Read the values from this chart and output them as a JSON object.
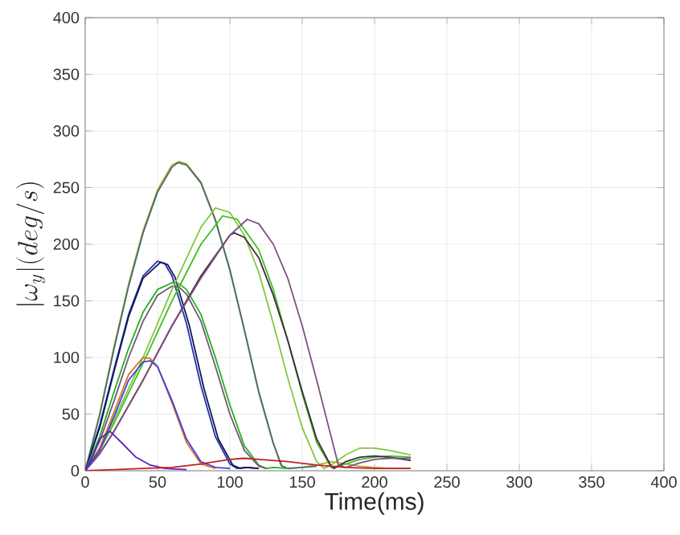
{
  "chart_data": {
    "type": "line",
    "xlabel": "Time(ms)",
    "ylabel": "|\\omega_y|(deg/s)",
    "xlim": [
      0,
      400
    ],
    "ylim": [
      0,
      400
    ],
    "xticks": [
      0,
      50,
      100,
      150,
      200,
      250,
      300,
      350,
      400
    ],
    "yticks": [
      0,
      50,
      100,
      150,
      200,
      250,
      300,
      350,
      400
    ],
    "grid": true,
    "series": [
      {
        "color": "#c0a838",
        "x": [
          0,
          10,
          20,
          30,
          40,
          50,
          60,
          65,
          70,
          80,
          90,
          100,
          110,
          120,
          130,
          135,
          140,
          150,
          160,
          170,
          180,
          190,
          200,
          210,
          225
        ],
        "values": [
          0,
          50,
          110,
          165,
          212,
          248,
          270,
          273,
          271,
          255,
          222,
          178,
          125,
          70,
          25,
          5,
          2,
          3,
          5,
          8,
          6,
          4,
          3,
          2,
          2
        ]
      },
      {
        "color": "#3f6f6f",
        "x": [
          0,
          10,
          20,
          30,
          40,
          50,
          60,
          64,
          70,
          80,
          90,
          100,
          110,
          120,
          130,
          136,
          140,
          150,
          160
        ],
        "values": [
          0,
          49,
          108,
          163,
          210,
          246,
          268,
          272,
          270,
          254,
          221,
          177,
          124,
          69,
          24,
          4,
          2,
          3,
          4
        ]
      },
      {
        "color": "#2030b0",
        "x": [
          0,
          10,
          20,
          30,
          40,
          50,
          55,
          60,
          70,
          80,
          90,
          100,
          105,
          110,
          120
        ],
        "values": [
          0,
          40,
          90,
          138,
          172,
          185,
          183,
          172,
          130,
          75,
          30,
          6,
          2,
          3,
          2
        ]
      },
      {
        "color": "#101850",
        "x": [
          0,
          10,
          20,
          30,
          40,
          52,
          57,
          62,
          72,
          82,
          92,
          102,
          107,
          112,
          120
        ],
        "values": [
          0,
          38,
          88,
          136,
          170,
          184,
          182,
          171,
          128,
          73,
          28,
          5,
          2,
          3,
          2
        ]
      },
      {
        "color": "#20b020",
        "x": [
          0,
          10,
          20,
          30,
          40,
          50,
          60,
          65,
          70,
          80,
          90,
          100,
          110,
          120,
          125,
          130,
          140
        ],
        "values": [
          0,
          30,
          70,
          108,
          140,
          160,
          166,
          165,
          160,
          138,
          100,
          58,
          22,
          5,
          2,
          3,
          2
        ]
      },
      {
        "color": "#705878",
        "x": [
          0,
          10,
          20,
          30,
          40,
          50,
          60,
          65,
          70,
          80,
          90,
          100,
          110,
          120,
          125
        ],
        "values": [
          0,
          26,
          62,
          100,
          132,
          155,
          163,
          162,
          156,
          132,
          92,
          50,
          18,
          4,
          2
        ]
      },
      {
        "color": "#80c840",
        "x": [
          0,
          10,
          20,
          40,
          60,
          80,
          90,
          100,
          110,
          120,
          130,
          140,
          150,
          160,
          165,
          170,
          180,
          190,
          200,
          210,
          225
        ],
        "values": [
          0,
          20,
          45,
          100,
          160,
          215,
          232,
          228,
          208,
          175,
          130,
          82,
          38,
          8,
          2,
          5,
          14,
          20,
          20,
          18,
          14
        ]
      },
      {
        "color": "#40c020",
        "x": [
          0,
          10,
          20,
          40,
          60,
          80,
          95,
          105,
          120,
          130,
          140,
          150,
          160,
          170,
          180,
          190,
          200,
          210,
          225
        ],
        "values": [
          0,
          18,
          42,
          95,
          150,
          200,
          225,
          222,
          195,
          160,
          115,
          68,
          25,
          3,
          6,
          10,
          12,
          13,
          12
        ]
      },
      {
        "color": "#402840",
        "x": [
          0,
          10,
          20,
          40,
          60,
          80,
          100,
          103,
          110,
          120,
          130,
          140,
          150,
          160,
          170,
          172,
          180,
          190,
          200,
          210,
          225
        ],
        "values": [
          0,
          15,
          35,
          80,
          128,
          172,
          208,
          210,
          206,
          188,
          155,
          115,
          70,
          28,
          4,
          2,
          8,
          12,
          13,
          12,
          9
        ]
      },
      {
        "color": "#805080",
        "x": [
          0,
          10,
          20,
          40,
          60,
          80,
          100,
          112,
          120,
          130,
          140,
          150,
          160,
          170,
          175,
          180,
          190,
          200,
          210,
          225
        ],
        "values": [
          0,
          15,
          35,
          80,
          128,
          170,
          208,
          222,
          218,
          200,
          170,
          128,
          80,
          30,
          5,
          3,
          7,
          10,
          11,
          11
        ]
      },
      {
        "color": "#e07020",
        "x": [
          0,
          10,
          20,
          30,
          40,
          45,
          50,
          60,
          70,
          80,
          90
        ],
        "values": [
          0,
          20,
          52,
          85,
          100,
          99,
          92,
          60,
          25,
          6,
          2
        ]
      },
      {
        "color": "#4040e0",
        "x": [
          0,
          10,
          20,
          30,
          40,
          45,
          50,
          60,
          70,
          80,
          90,
          100
        ],
        "values": [
          0,
          18,
          48,
          80,
          96,
          97,
          92,
          62,
          28,
          8,
          3,
          2
        ]
      },
      {
        "color": "#6020c0",
        "x": [
          0,
          5,
          10,
          17,
          25,
          35,
          45,
          55,
          70
        ],
        "values": [
          0,
          12,
          28,
          35,
          25,
          12,
          5,
          2,
          1
        ]
      },
      {
        "color": "#c02020",
        "x": [
          0,
          20,
          40,
          60,
          80,
          100,
          110,
          120,
          140,
          160,
          180,
          200,
          225
        ],
        "values": [
          0,
          1,
          2,
          3,
          6,
          10,
          11,
          10,
          8,
          5,
          3,
          2,
          2
        ]
      }
    ]
  }
}
